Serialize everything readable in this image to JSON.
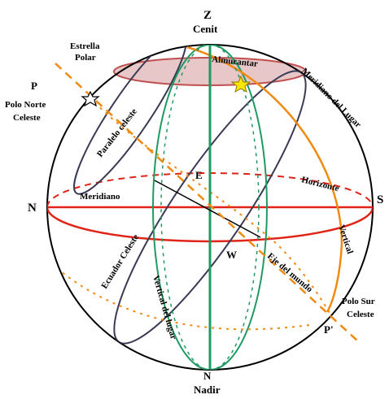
{
  "colors": {
    "sphere": "#000000",
    "meridian": "#1f9a63",
    "horizon": "#e02418",
    "circle": "#3a3a55",
    "orange": "#f08a10",
    "almucantar_fill": "#e7c7c7",
    "almucantar_stroke": "#c05050",
    "star": "#ffe600"
  },
  "icons": {
    "star": "star-icon"
  },
  "labels": {
    "zenith_letter": "Z",
    "zenith_word": "Cenit",
    "nadir_letter": "N",
    "nadir_word": "Nadir",
    "north": "N",
    "south": "S",
    "east": "E",
    "west": "W",
    "polar_star_line1": "Estrella",
    "polar_star_line2": "Polar",
    "north_pole_letter": "P",
    "north_pole_line1": "Polo Norte",
    "north_pole_line2": "Celeste",
    "south_pole_letter": "P'",
    "south_pole_line1": "Polo Sur",
    "south_pole_line2": "Celeste",
    "almucantar": "Almucantar",
    "local_meridian": "Meridiano del Lugar",
    "celestial_parallel": "Paralelo celeste",
    "horizon": "Horizonte",
    "meridian": "Meridiano",
    "celestial_equator": "Ecuador Celeste",
    "vertical": "Vertical",
    "world_axis": "Eje del mundo",
    "prime_vertical": "Vertical del lugar"
  }
}
